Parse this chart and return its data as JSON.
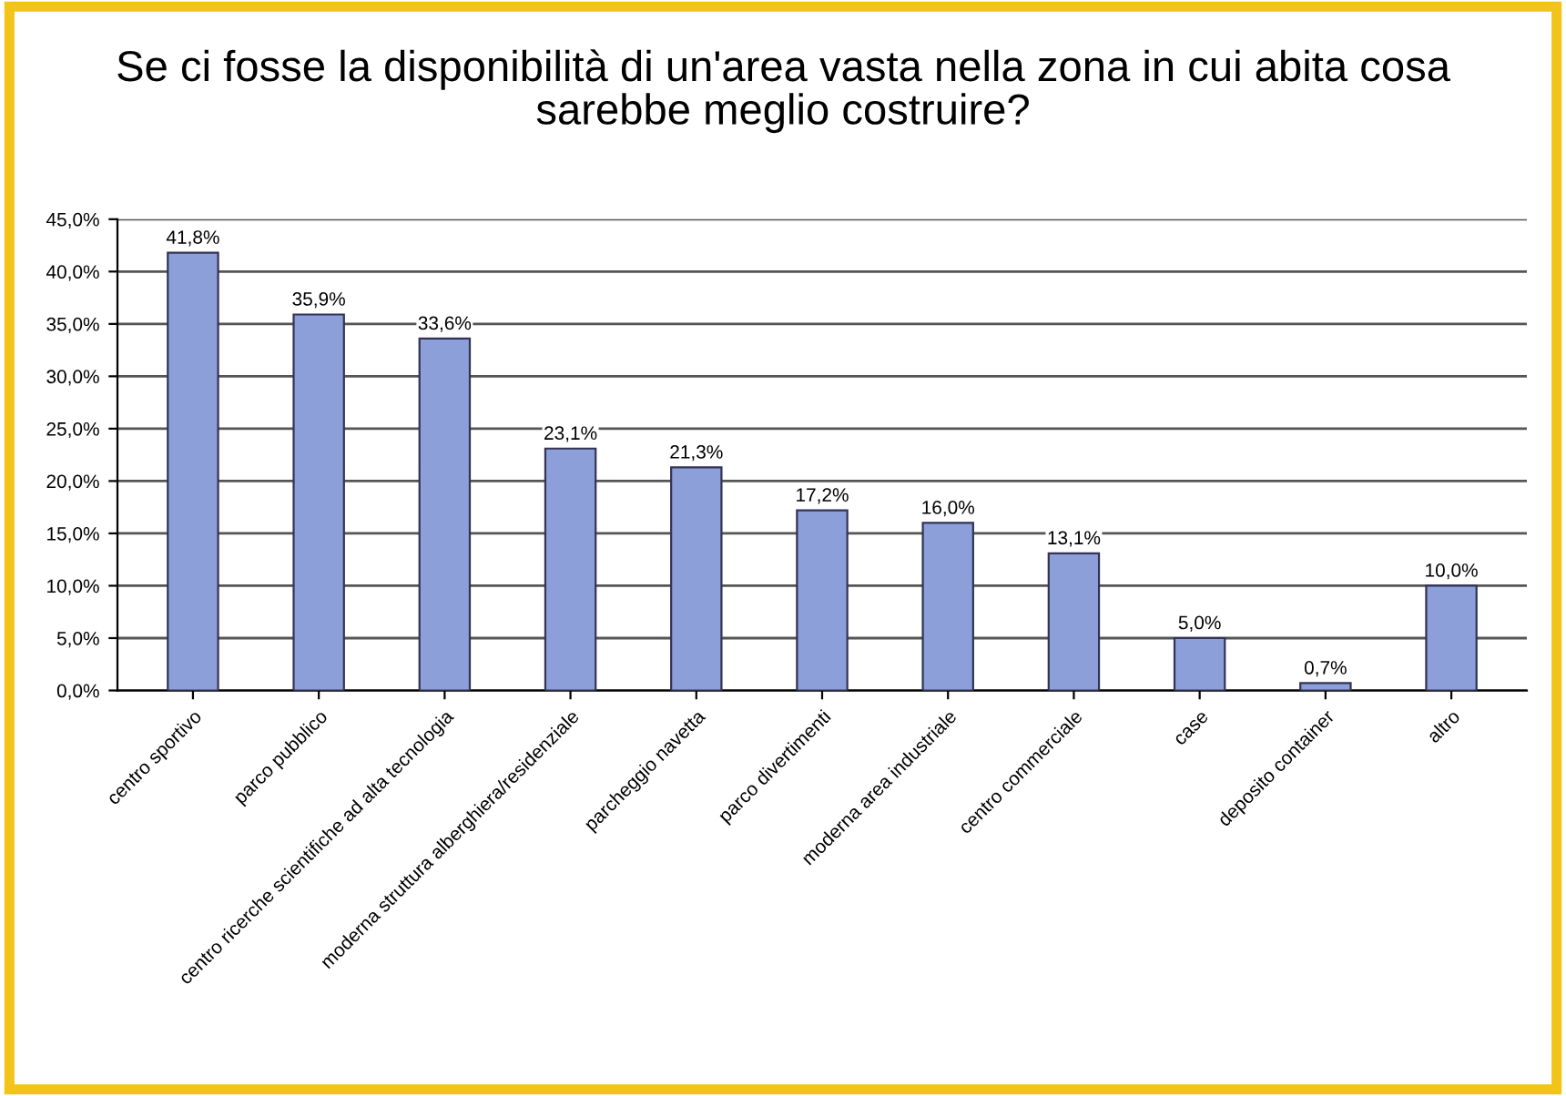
{
  "chart_data": {
    "type": "bar",
    "title": "Se ci fosse la disponibilità di un'area vasta nella zona in cui abita cosa sarebbe meglio costruire?",
    "categories": [
      "centro sportivo",
      "parco pubblico",
      "centro ricerche scientifiche ad alta tecnologia",
      "moderna struttura alberghiera/residenziale",
      "parcheggio navetta",
      "parco divertimenti",
      "moderna area industriale",
      "centro commerciale",
      "case",
      "deposito container",
      "altro"
    ],
    "values": [
      41.8,
      35.9,
      33.6,
      23.1,
      21.3,
      17.2,
      16.0,
      13.1,
      5.0,
      0.7,
      10.0
    ],
    "value_labels": [
      "41,8%",
      "35,9%",
      "33,6%",
      "23,1%",
      "21,3%",
      "17,2%",
      "16,0%",
      "13,1%",
      "5,0%",
      "0,7%",
      "10,0%"
    ],
    "color": "#8c9fd8",
    "ylim": [
      0,
      45
    ],
    "yticks": [
      {
        "value": 0,
        "label": "0,0%"
      },
      {
        "value": 5,
        "label": "5,0%"
      },
      {
        "value": 10,
        "label": "10,0%"
      },
      {
        "value": 15,
        "label": "15,0%"
      },
      {
        "value": 20,
        "label": "20,0%"
      },
      {
        "value": 25,
        "label": "25,0%"
      },
      {
        "value": 30,
        "label": "30,0%"
      },
      {
        "value": 35,
        "label": "35,0%"
      },
      {
        "value": 40,
        "label": "40,0%"
      },
      {
        "value": 45,
        "label": "45,0%"
      }
    ],
    "grid": "y"
  }
}
